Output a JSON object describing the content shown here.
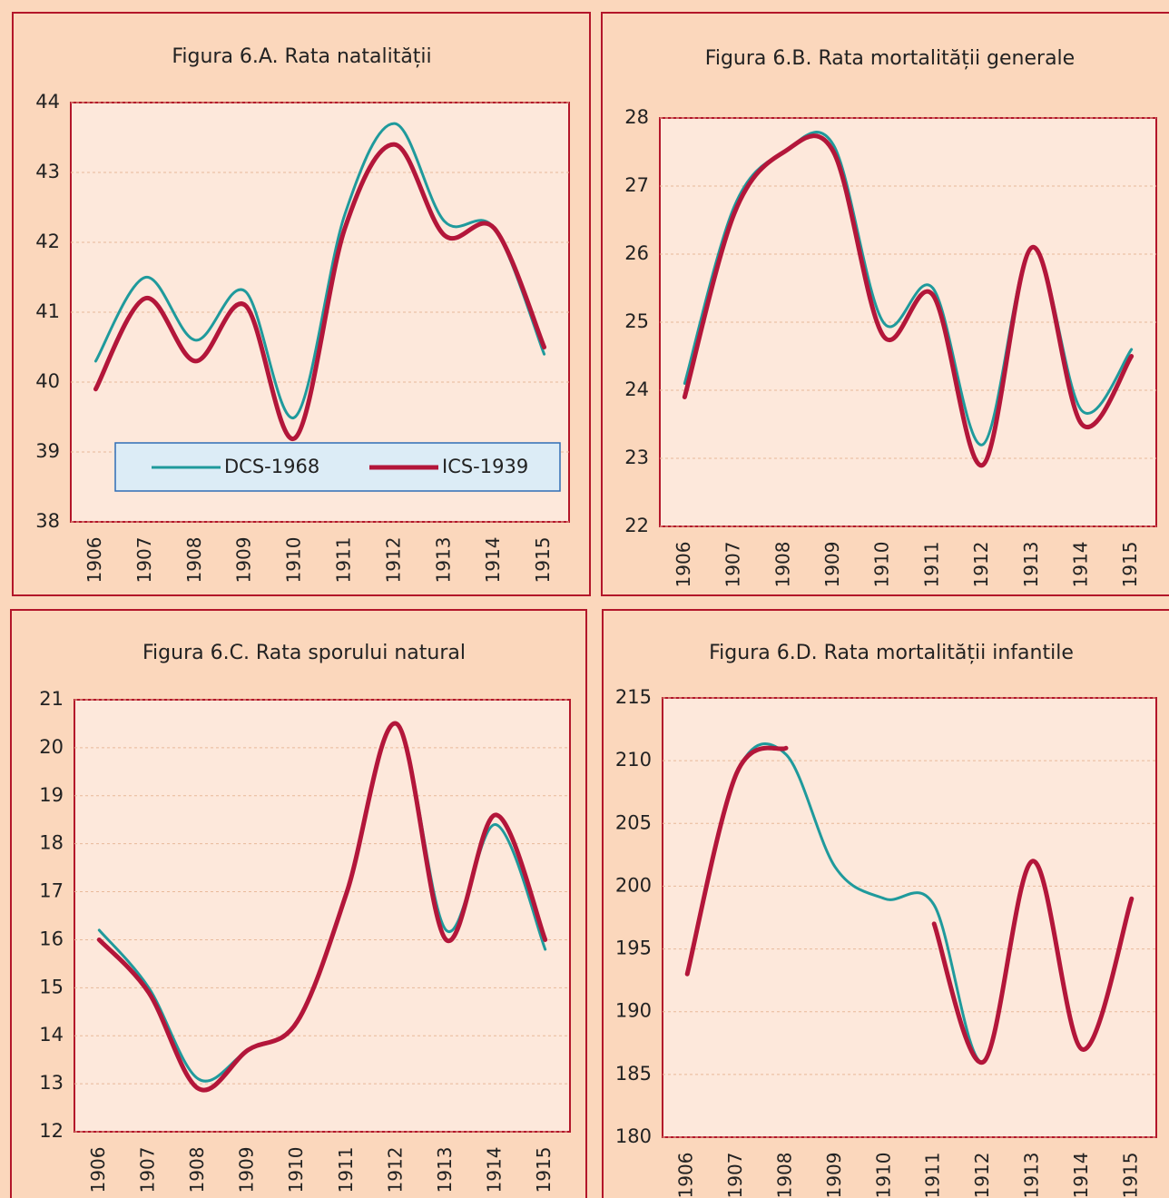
{
  "chart_data": [
    {
      "type": "line",
      "title": "Figura 6.A. Rata natalității",
      "categories": [
        "1906",
        "1907",
        "1908",
        "1909",
        "1910",
        "1911",
        "1912",
        "1913",
        "1914",
        "1915"
      ],
      "series": [
        {
          "name": "DCS-1968",
          "color": "#1f9a9c",
          "values": [
            40.3,
            41.5,
            40.6,
            41.3,
            39.5,
            42.4,
            43.7,
            42.3,
            42.2,
            40.4
          ]
        },
        {
          "name": "ICS-1939",
          "color": "#b3163a",
          "values": [
            39.9,
            41.2,
            40.3,
            41.1,
            39.2,
            42.2,
            43.4,
            42.1,
            42.2,
            40.5
          ]
        }
      ],
      "ylim": [
        38,
        44
      ],
      "yticks": [
        38,
        39,
        40,
        41,
        42,
        43,
        44
      ],
      "grid": true,
      "legend": "bottom"
    },
    {
      "type": "line",
      "title": "Figura 6.B. Rata mortalității generale",
      "categories": [
        "1906",
        "1907",
        "1908",
        "1909",
        "1910",
        "1911",
        "1912",
        "1913",
        "1914",
        "1915"
      ],
      "series": [
        {
          "color": "#1f9a9c",
          "values": [
            24.1,
            26.7,
            27.5,
            27.6,
            25.0,
            25.5,
            23.2,
            26.1,
            23.7,
            24.6
          ]
        },
        {
          "color": "#b3163a",
          "values": [
            23.9,
            26.6,
            27.5,
            27.5,
            24.8,
            25.4,
            22.9,
            26.1,
            23.5,
            24.5
          ]
        }
      ],
      "ylim": [
        22,
        28
      ],
      "yticks": [
        22,
        23,
        24,
        25,
        26,
        27,
        28
      ],
      "grid": true
    },
    {
      "type": "line",
      "title": "Figura 6.C. Rata sporului natural",
      "categories": [
        "1906",
        "1907",
        "1908",
        "1909",
        "1910",
        "1911",
        "1912",
        "1913",
        "1914",
        "1915"
      ],
      "series": [
        {
          "color": "#1f9a9c",
          "values": [
            16.2,
            15.0,
            13.1,
            13.7,
            14.3,
            17.0,
            20.5,
            16.2,
            18.4,
            15.8
          ]
        },
        {
          "color": "#b3163a",
          "values": [
            16.0,
            14.9,
            12.9,
            13.7,
            14.3,
            17.0,
            20.5,
            16.0,
            18.6,
            16.0
          ]
        }
      ],
      "ylim": [
        12,
        21
      ],
      "yticks": [
        12,
        13,
        14,
        15,
        16,
        17,
        18,
        19,
        20,
        21
      ],
      "grid": true
    },
    {
      "type": "line",
      "title": "Figura 6.D. Rata mortalității infantile",
      "categories": [
        "1906",
        "1907",
        "1908",
        "1909",
        "1910",
        "1911",
        "1912",
        "1913",
        "1914",
        "1915"
      ],
      "series": [
        {
          "color": "#1f9a9c",
          "values": [
            193,
            209,
            210.5,
            201.5,
            199,
            198.5,
            186,
            202,
            187,
            199
          ]
        },
        {
          "color": "#b3163a",
          "values": [
            193,
            209,
            211,
            null,
            null,
            197,
            186,
            202,
            187,
            199
          ]
        }
      ],
      "ylim": [
        180,
        215
      ],
      "yticks": [
        180,
        185,
        190,
        195,
        200,
        205,
        210,
        215
      ],
      "grid": true
    }
  ]
}
